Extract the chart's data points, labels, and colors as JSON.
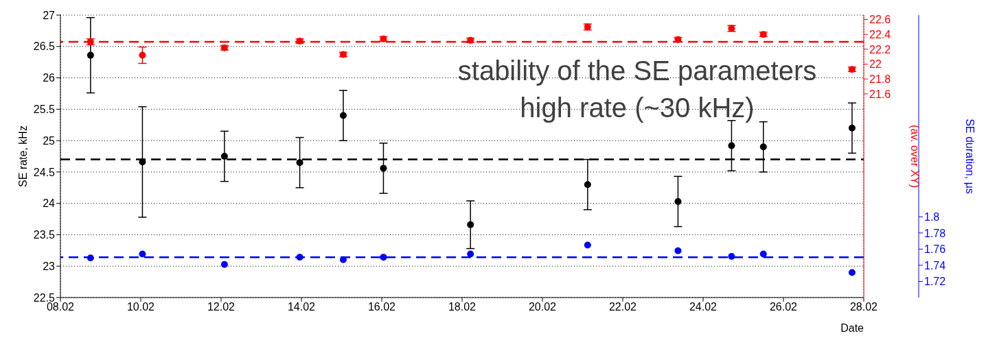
{
  "chart_data": {
    "type": "scatter",
    "xlabel": "Date",
    "ylabel": "SE rate, kHz",
    "y2label": "(av. over XY)",
    "y3label": "SE duration, µs",
    "annotations": [
      "stability of the SE parameters",
      "high rate (~30 kHz)"
    ],
    "xlim": [
      "--02-08",
      "--02-28"
    ],
    "xticks": [
      {
        "value": "--02-08",
        "label": "08.02"
      },
      {
        "value": "--02-10",
        "label": "10.02"
      },
      {
        "value": "--02-12",
        "label": "12.02"
      },
      {
        "value": "--02-14",
        "label": "14.02"
      },
      {
        "value": "--02-16",
        "label": "16.02"
      },
      {
        "value": "--02-18",
        "label": "18.02"
      },
      {
        "value": "--02-20",
        "label": "20.02"
      },
      {
        "value": "--02-22",
        "label": "22.02"
      },
      {
        "value": "--02-24",
        "label": "24.02"
      },
      {
        "value": "--02-26",
        "label": "26.02"
      },
      {
        "value": "--02-28",
        "label": "28.02"
      }
    ],
    "x": [
      "--02-08T18:00",
      "--02-10T01:00",
      "--02-12T02:00",
      "--02-13T23:00",
      "--02-15T01:00",
      "--02-16T01:00",
      "--02-18T05:00",
      "--02-21T03:00",
      "--02-23T09:00",
      "--02-24T17:00",
      "--02-25T12:00",
      "--02-27T17:00"
    ],
    "ylim": [
      22.5,
      27
    ],
    "yticks": [
      22.5,
      23,
      23.5,
      24,
      24.5,
      25,
      25.5,
      26,
      26.5,
      27
    ],
    "y2lim": [
      18.86,
      22.66
    ],
    "y2ticks": [
      21.6,
      21.8,
      22,
      22.2,
      22.4,
      22.6
    ],
    "y3lim": [
      1.7,
      2.05
    ],
    "y3ticks": [
      1.72,
      1.74,
      1.76,
      1.78,
      1.8
    ],
    "grid": true,
    "marker": "circle",
    "series": [
      {
        "color": "#000000",
        "axis": "y",
        "values": [
          26.36,
          24.66,
          24.75,
          24.65,
          25.4,
          24.56,
          23.66,
          24.3,
          24.03,
          24.92,
          24.9,
          25.2
        ],
        "errors": [
          0.6,
          0.88,
          0.4,
          0.4,
          0.4,
          0.4,
          0.38,
          0.4,
          0.4,
          0.4,
          0.4,
          0.4
        ]
      },
      {
        "color": "#ff0000",
        "axis": "y2",
        "values": [
          22.3,
          22.12,
          22.22,
          22.31,
          22.13,
          22.34,
          22.32,
          22.5,
          22.33,
          22.48,
          22.4,
          21.93
        ],
        "errors": [
          0.04,
          0.11,
          0.03,
          0.03,
          0.03,
          0.03,
          0.03,
          0.04,
          0.03,
          0.04,
          0.03,
          0.03
        ]
      },
      {
        "color": "#0000ff",
        "axis": "y3",
        "values": [
          1.749,
          1.754,
          1.741,
          1.75,
          1.747,
          1.75,
          1.754,
          1.765,
          1.758,
          1.751,
          1.754,
          1.731
        ]
      }
    ],
    "ref_lines": [
      {
        "axis": "y",
        "value": 24.7,
        "color": "#000000",
        "line_style": "dashed"
      },
      {
        "axis": "y2",
        "value": 22.3,
        "color": "#ff0000",
        "line_style": "dashed"
      },
      {
        "axis": "y3",
        "value": 1.75,
        "color": "#0000ff",
        "line_style": "dashed"
      }
    ]
  }
}
